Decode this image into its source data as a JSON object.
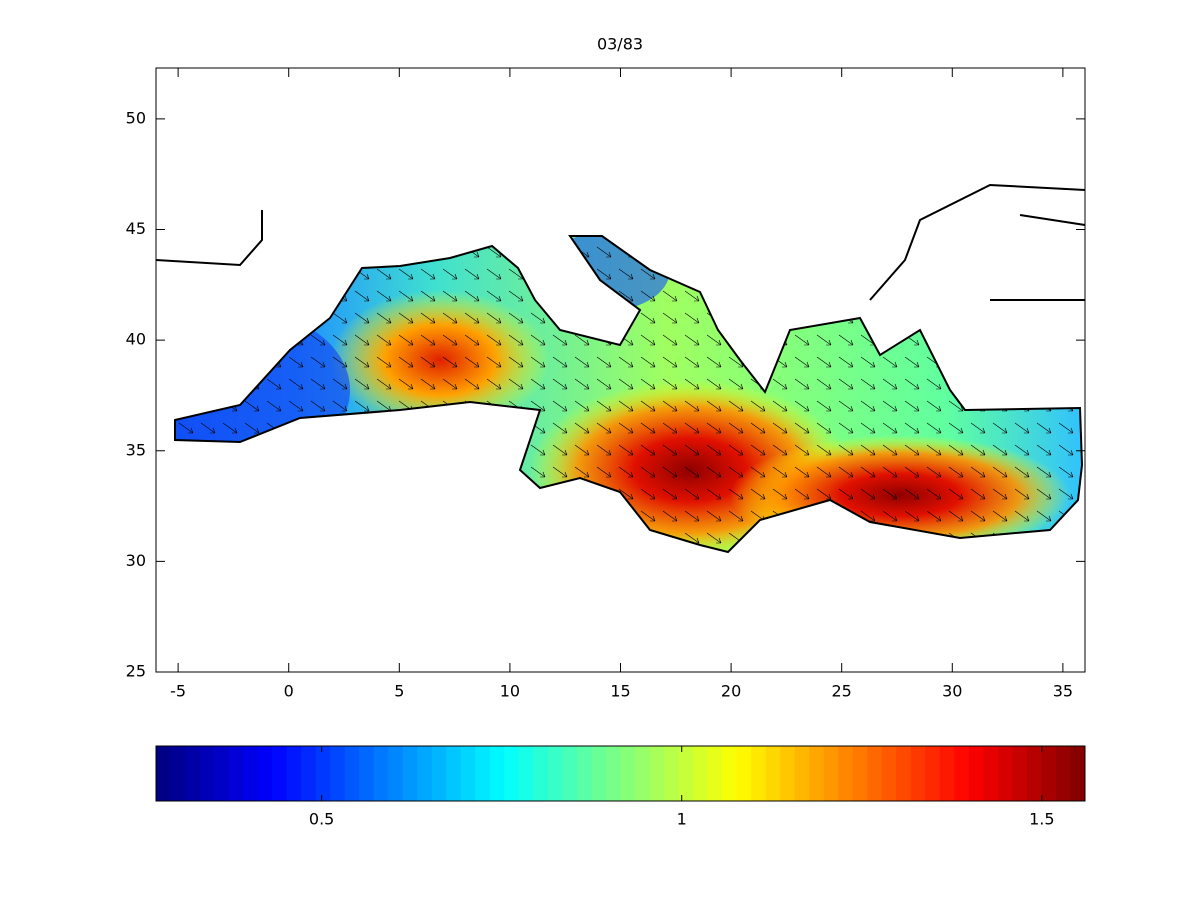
{
  "map": {
    "title": "03/83",
    "xlim": [
      -6,
      36
    ],
    "ylim": [
      25,
      52.3
    ],
    "xticks": [
      -5,
      0,
      5,
      10,
      15,
      20,
      25,
      30,
      35
    ],
    "yticks": [
      25,
      30,
      35,
      40,
      45,
      50
    ]
  },
  "colorbar": {
    "clim": [
      0.27,
      1.56
    ],
    "ticks": [
      0.5,
      1,
      1.5
    ],
    "colormap": "jet"
  }
}
